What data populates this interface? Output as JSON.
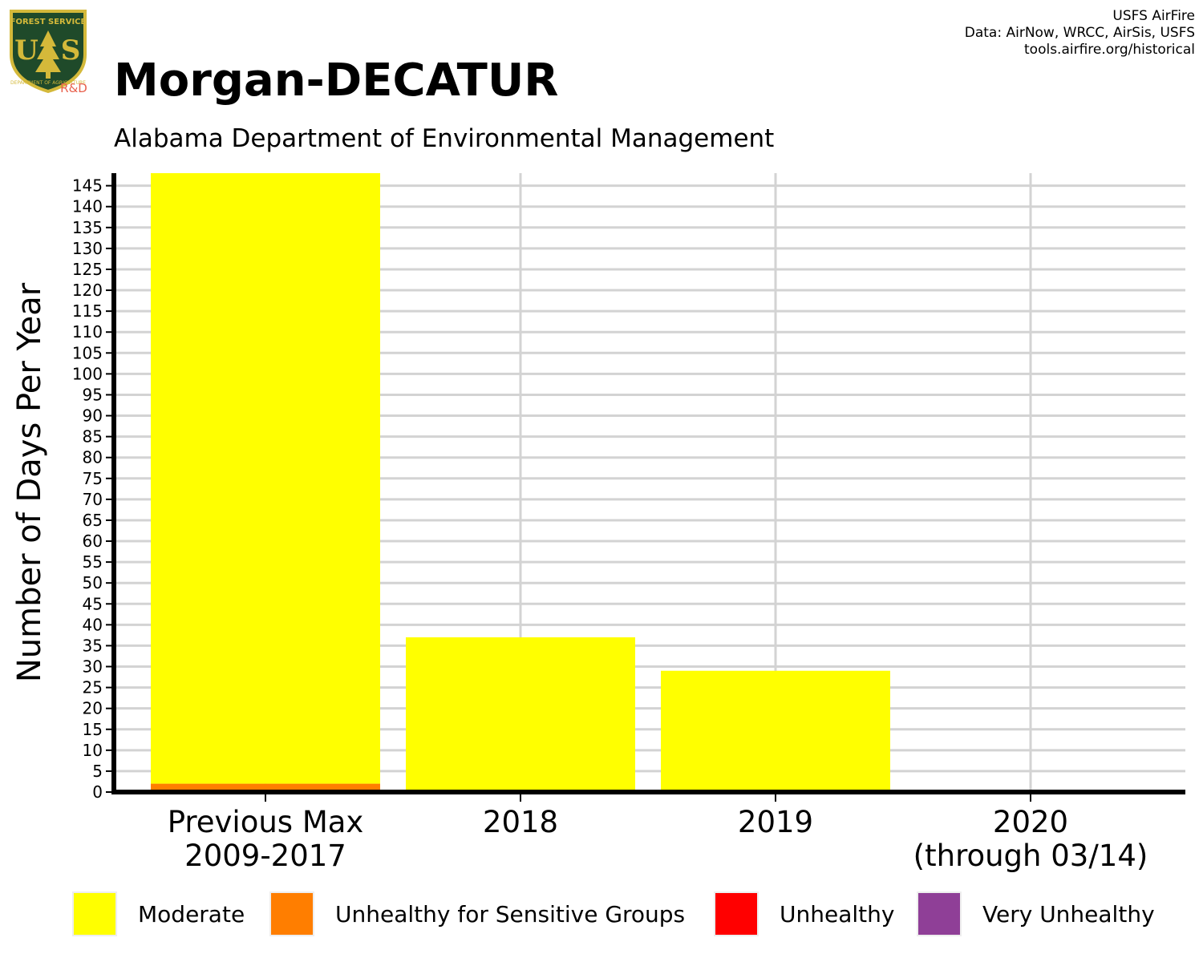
{
  "header": {
    "logo_text": [
      "FOREST SERVICE",
      "U",
      "S",
      "DEPARTMENT OF AGRICULTURE"
    ],
    "logo_subtext": "R&D",
    "title": "Morgan-DECATUR",
    "subtitle": "Alabama Department of Environmental Management",
    "credits": [
      "USFS AirFire",
      "Data: AirNow, WRCC, AirSis, USFS",
      "tools.airfire.org/historical"
    ]
  },
  "colors": {
    "moderate": "#ffff00",
    "usg": "#ff7e00",
    "unhealthy": "#ff0000",
    "very_unhealthy": "#8f3f97",
    "grid": "#d3d3d3",
    "logo_green": "#1f4a2a",
    "logo_gold": "#d4b93a",
    "logo_rd": "#e8604c"
  },
  "chart_data": {
    "type": "bar",
    "stacked": true,
    "categories": [
      [
        "Previous Max",
        "2009-2017"
      ],
      [
        "2018"
      ],
      [
        "2019"
      ],
      [
        "2020",
        "(through 03/14)"
      ]
    ],
    "ylabel": "Number of Days Per Year",
    "ylim": [
      0,
      148
    ],
    "yticks": [
      0,
      5,
      10,
      15,
      20,
      25,
      30,
      35,
      40,
      45,
      50,
      55,
      60,
      65,
      70,
      75,
      80,
      85,
      90,
      95,
      100,
      105,
      110,
      115,
      120,
      125,
      130,
      135,
      140,
      145
    ],
    "grid": true,
    "series": [
      {
        "name": "Moderate",
        "color": "#ffff00",
        "values": [
          146,
          37,
          29,
          0
        ]
      },
      {
        "name": "Unhealthy for Sensitive Groups",
        "color": "#ff7e00",
        "values": [
          2,
          0,
          0,
          0
        ]
      },
      {
        "name": "Unhealthy",
        "color": "#ff0000",
        "values": [
          0,
          0,
          0,
          0
        ]
      },
      {
        "name": "Very Unhealthy",
        "color": "#8f3f97",
        "values": [
          0,
          0,
          0,
          0
        ]
      }
    ],
    "legend_position": "bottom"
  }
}
